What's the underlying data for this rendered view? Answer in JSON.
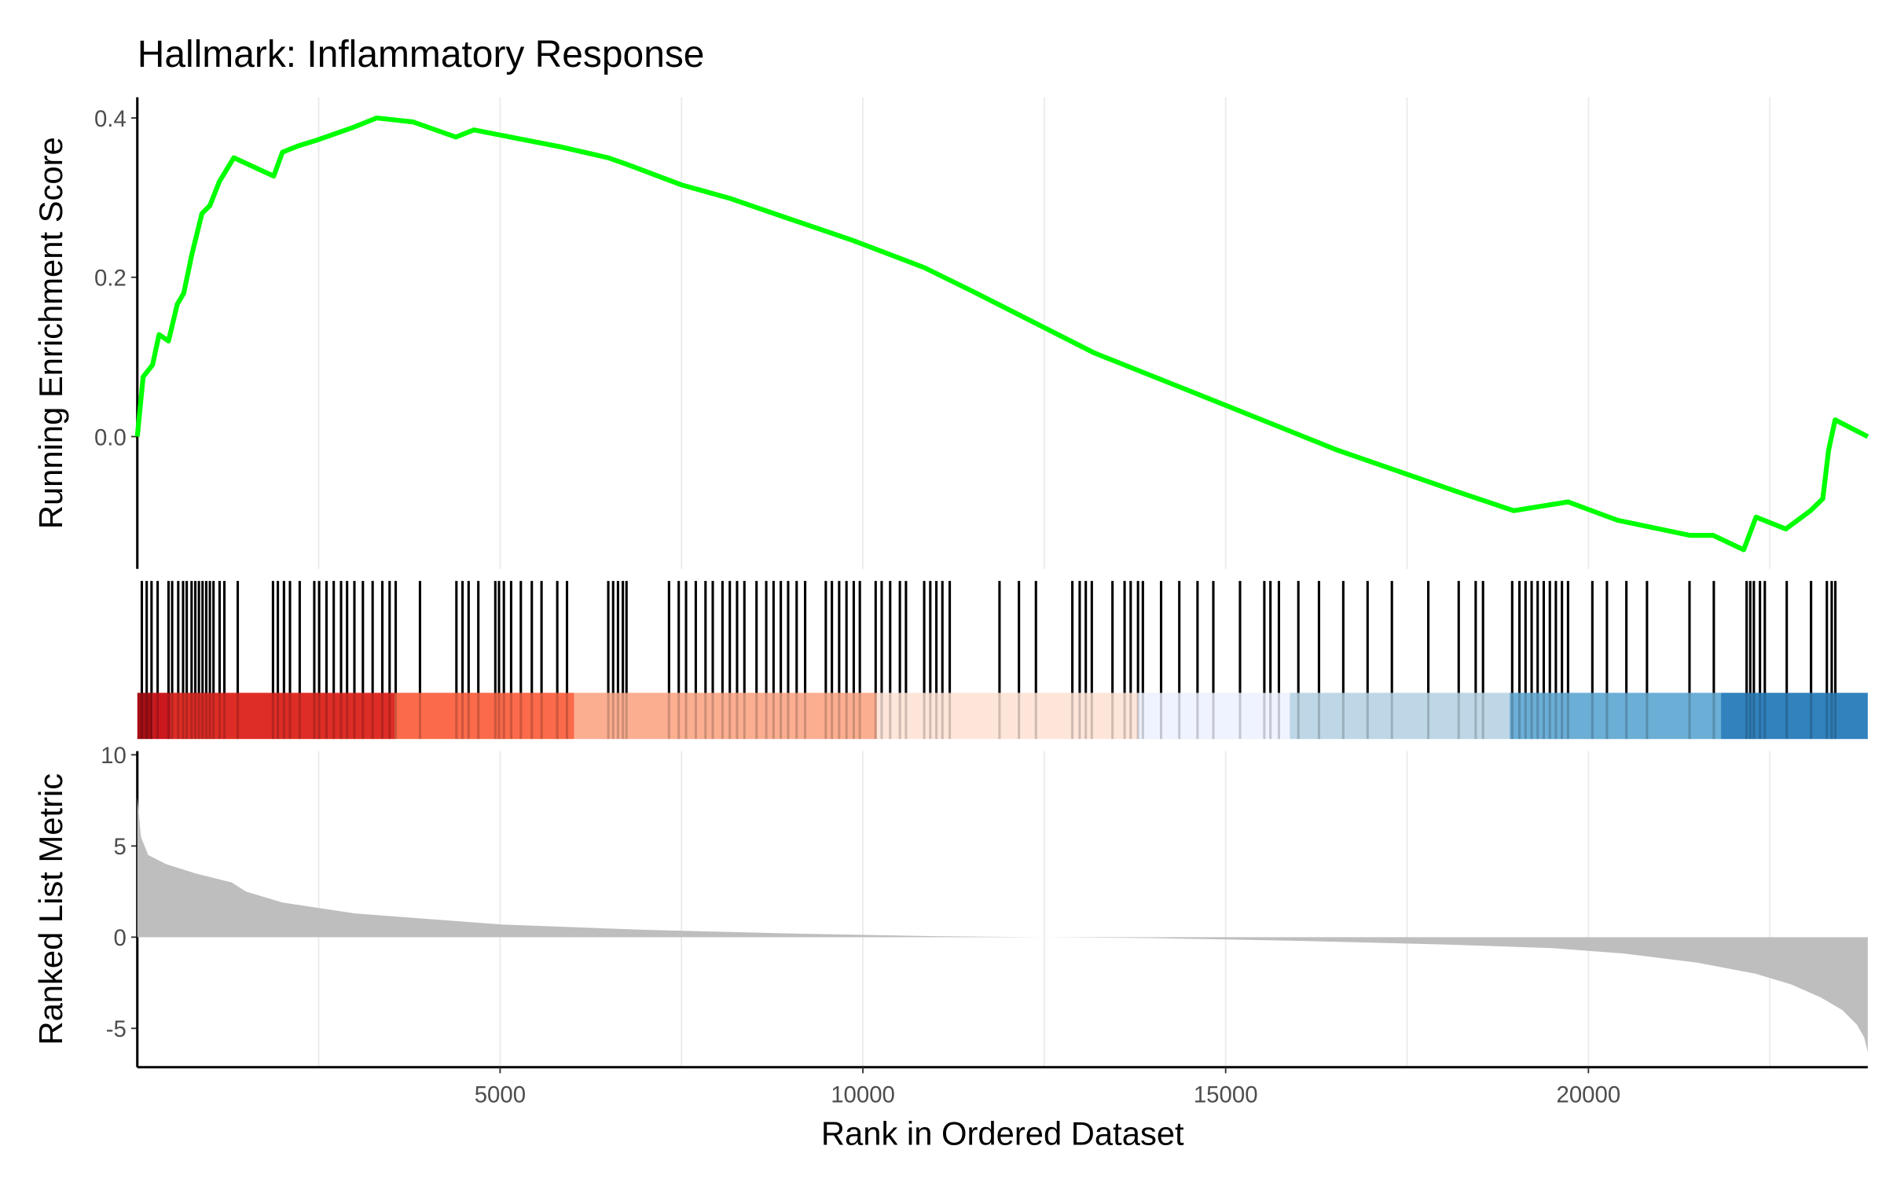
{
  "chart_data": [
    {
      "type": "line",
      "title": "Hallmark: Inflammatory Response",
      "y_label": "Running Enrichment Score",
      "x": [
        0,
        80,
        210,
        300,
        430,
        550,
        640,
        750,
        890,
        1000,
        1130,
        1330,
        1880,
        2000,
        2220,
        2470,
        2970,
        3300,
        3800,
        4390,
        4640,
        5310,
        5820,
        6490,
        6740,
        7500,
        8170,
        9000,
        9840,
        10850,
        11520,
        13190,
        14870,
        16540,
        18220,
        18970,
        19720,
        20400,
        21400,
        21720,
        22140,
        22310,
        22720,
        23060,
        23230,
        23310,
        23400,
        23850
      ],
      "values": [
        0,
        0.075,
        0.09,
        0.128,
        0.12,
        0.166,
        0.18,
        0.228,
        0.28,
        0.29,
        0.32,
        0.35,
        0.327,
        0.357,
        0.365,
        0.372,
        0.388,
        0.4,
        0.395,
        0.376,
        0.385,
        0.373,
        0.364,
        0.35,
        0.342,
        0.316,
        0.299,
        0.273,
        0.247,
        0.212,
        0.182,
        0.105,
        0.044,
        -0.017,
        -0.07,
        -0.093,
        -0.082,
        -0.105,
        -0.124,
        -0.124,
        -0.142,
        -0.101,
        -0.116,
        -0.093,
        -0.078,
        -0.017,
        0.021,
        0
      ],
      "color": "#00ff00",
      "xlim": [
        0,
        23850
      ],
      "ylim": [
        -0.166,
        0.426
      ],
      "yticks": [
        {
          "value": 0,
          "label": "0.0"
        },
        0.2,
        0.4
      ],
      "xgrid": [
        2500,
        5000,
        7500,
        10000,
        12500,
        15000,
        17500,
        20000,
        22500
      ]
    },
    {
      "type": "rug",
      "color": "#000000",
      "xlim": [
        0,
        23850
      ],
      "x": [
        62,
        129,
        196,
        280,
        430,
        480,
        564,
        631,
        681,
        748,
        799,
        849,
        899,
        950,
        1000,
        1050,
        1134,
        1200,
        1384,
        1870,
        1937,
        2021,
        2104,
        2238,
        2439,
        2506,
        2607,
        2707,
        2808,
        2891,
        2992,
        3109,
        3243,
        3377,
        3477,
        3561,
        3896,
        4398,
        4482,
        4566,
        4700,
        4934,
        4985,
        5052,
        5152,
        5286,
        5437,
        5571,
        5788,
        5922,
        6491,
        6558,
        6625,
        6692,
        6742,
        7328,
        7462,
        7563,
        7697,
        7831,
        7931,
        8065,
        8166,
        8266,
        8367,
        8534,
        8668,
        8769,
        8869,
        8970,
        9087,
        9204,
        9489,
        9573,
        9673,
        9774,
        9874,
        9958,
        10176,
        10259,
        10376,
        10510,
        10594,
        10845,
        10929,
        11013,
        11096,
        11197,
        11883,
        12151,
        12385,
        12887,
        12988,
        13072,
        13155,
        13440,
        13607,
        13691,
        13792,
        13859,
        14110,
        14361,
        14612,
        14830,
        15198,
        15533,
        15617,
        15734,
        16002,
        16286,
        16621,
        16956,
        17291,
        17793,
        18212,
        18446,
        18547,
        18949,
        19049,
        19133,
        19217,
        19300,
        19384,
        19468,
        19551,
        19635,
        19719,
        20054,
        20255,
        20523,
        20807,
        21393,
        21728,
        22180,
        22230,
        22280,
        22364,
        22431,
        22733,
        23068,
        23286,
        23353,
        23403
      ]
    },
    {
      "type": "band",
      "xlim": [
        0,
        23850
      ],
      "edges": [
        0,
        210,
        465,
        3548,
        6022,
        10191,
        13791,
        15884,
        18915,
        21827,
        23850
      ],
      "colors": [
        "#a50f15",
        "#cb181d",
        "#de2d26",
        "#fb6a4a",
        "#fcae91",
        "#fee5d9",
        "#eff3ff",
        "#bdd7e7",
        "#6baed6",
        "#3182bd"
      ]
    },
    {
      "type": "area",
      "y_label": "Ranked List Metric",
      "x_label": "Rank in Ordered Dataset",
      "x": [
        0,
        50,
        150,
        400,
        800,
        1200,
        1300,
        1500,
        2000,
        3000,
        4000,
        5000,
        7000,
        9000,
        11000,
        12500,
        14000,
        16000,
        18000,
        19500,
        20500,
        21500,
        22300,
        22800,
        23200,
        23500,
        23700,
        23800,
        23850
      ],
      "values": [
        7.7,
        5.5,
        4.5,
        4.0,
        3.5,
        3.1,
        3.0,
        2.5,
        1.9,
        1.3,
        1.0,
        0.7,
        0.4,
        0.2,
        0.05,
        0,
        -0.05,
        -0.2,
        -0.4,
        -0.6,
        -0.9,
        -1.4,
        -2.0,
        -2.6,
        -3.3,
        -4.0,
        -4.8,
        -5.5,
        -6.3
      ],
      "color": "#bebebe",
      "xlim": [
        0,
        23850
      ],
      "ylim": [
        -7.13,
        10.2
      ],
      "yticks": [
        -5,
        0,
        5,
        10
      ],
      "xticks": [
        5000,
        10000,
        15000,
        20000
      ],
      "xgrid": [
        2500,
        5000,
        7500,
        10000,
        12500,
        15000,
        17500,
        20000,
        22500
      ]
    }
  ]
}
